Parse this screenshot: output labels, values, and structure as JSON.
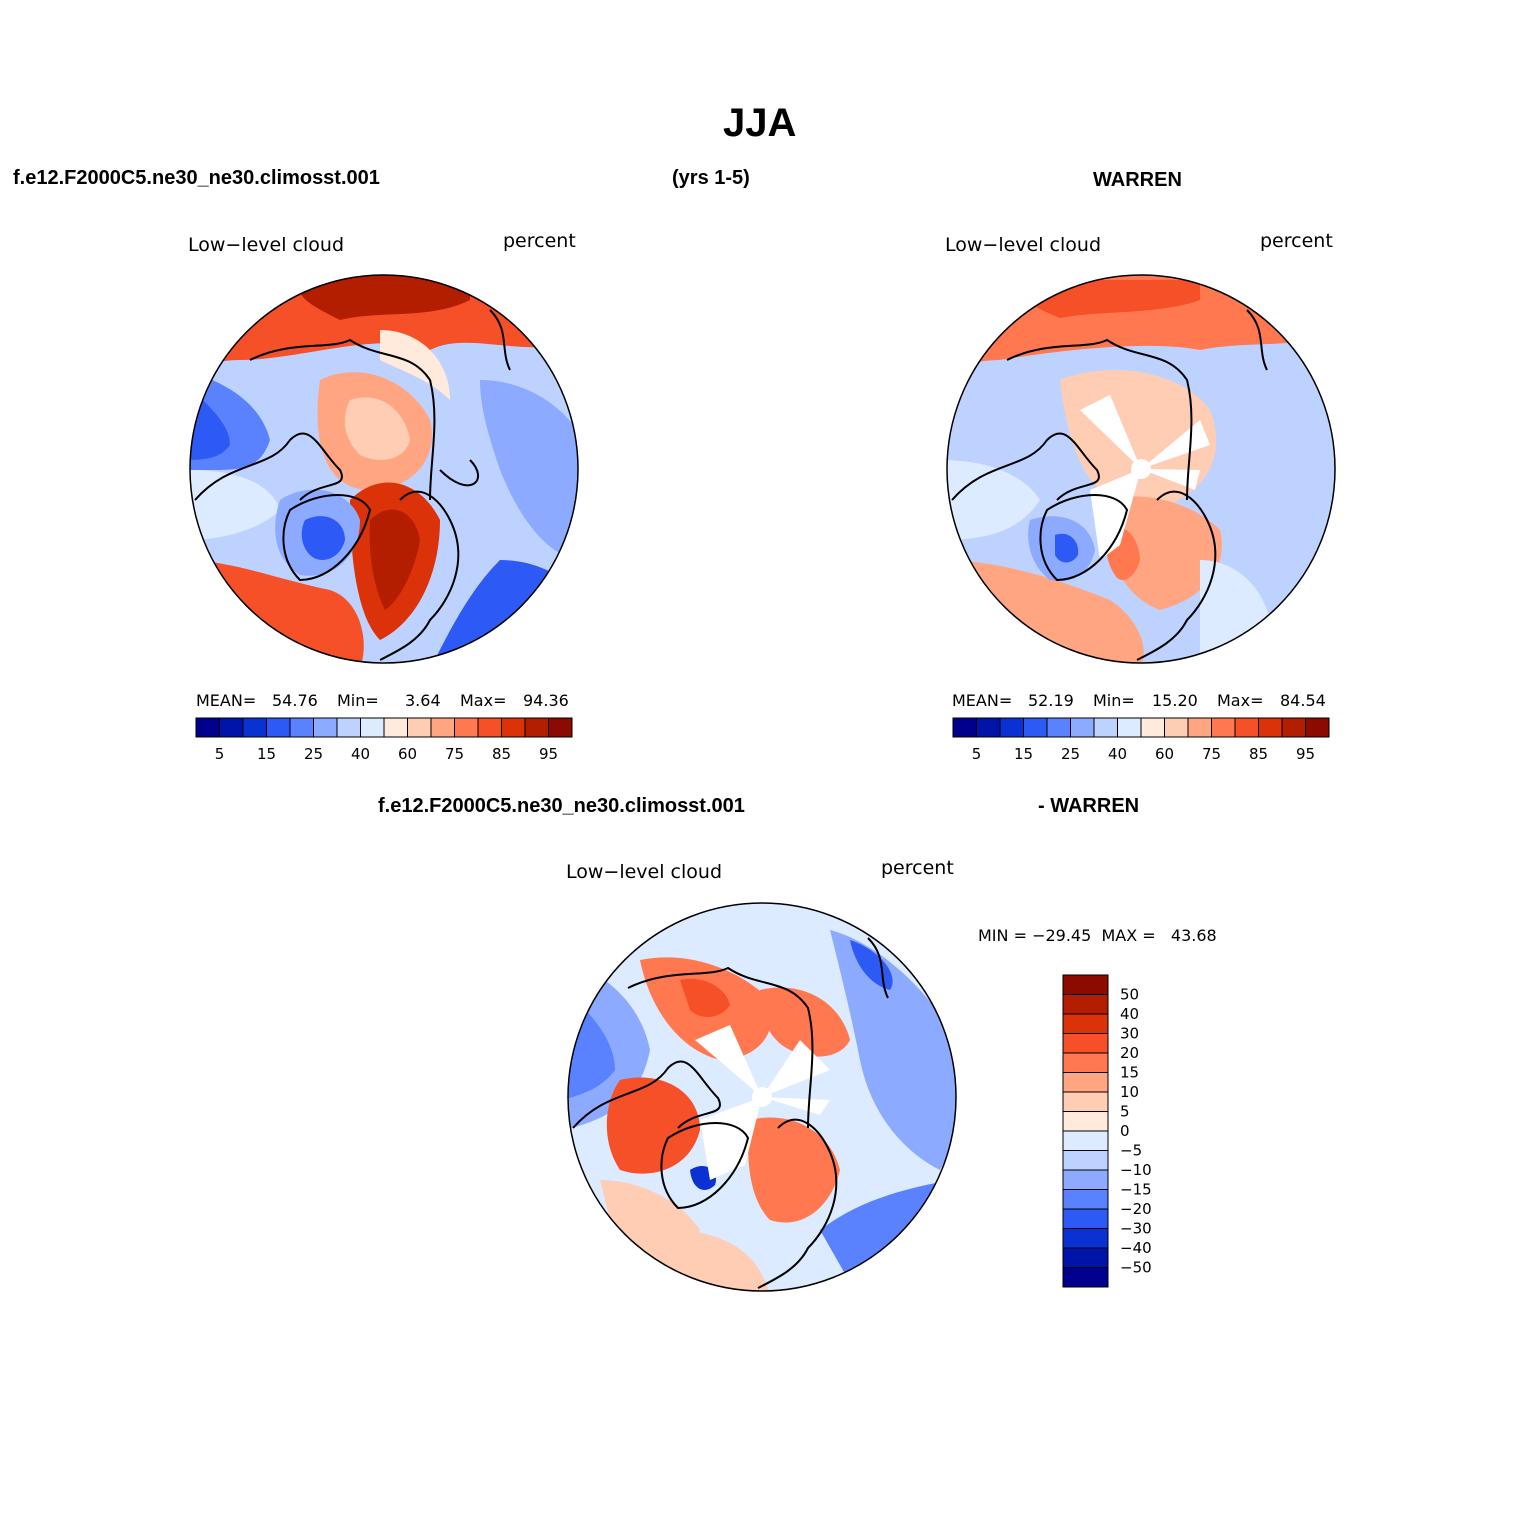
{
  "page": {
    "title": "JJA",
    "case_name": "f.e12.F2000C5.ne30_ne30.climosst.001",
    "years": "(yrs 1-5)",
    "obs_name": "WARREN",
    "diff_case": "f.e12.F2000C5.ne30_ne30.climosst.001",
    "diff_obs": "- WARREN"
  },
  "panels": [
    {
      "id": "model",
      "variable": "Low−level cloud",
      "units": "percent",
      "stats": {
        "mean_label": "MEAN=",
        "mean": "54.76",
        "min_label": "Min=",
        "min": "3.64",
        "max_label": "Max=",
        "max": "94.36"
      }
    },
    {
      "id": "obs",
      "variable": "Low−level cloud",
      "units": "percent",
      "stats": {
        "mean_label": "MEAN=",
        "mean": "52.19",
        "min_label": "Min=",
        "min": "15.20",
        "max_label": "Max=",
        "max": "84.54"
      }
    },
    {
      "id": "diff",
      "variable": "Low−level cloud",
      "units": "percent",
      "stats": {
        "minmax_text": "MIN = −29.45  MAX =   43.68"
      }
    }
  ],
  "colorbar_h": {
    "colors": [
      "#00008c",
      "#0014aa",
      "#0a32d2",
      "#2d5af5",
      "#5a82ff",
      "#8caaff",
      "#bed2ff",
      "#dcebff",
      "#ffeadc",
      "#ffcdb4",
      "#ffa582",
      "#ff7850",
      "#f55028",
      "#dc320a",
      "#b41e00",
      "#8c0a00"
    ],
    "labels": [
      "5",
      "15",
      "25",
      "40",
      "60",
      "75",
      "85",
      "95"
    ]
  },
  "colorbar_v": {
    "colors": [
      "#8c0a00",
      "#b41e00",
      "#dc320a",
      "#f55028",
      "#ff7850",
      "#ffa582",
      "#ffcdb4",
      "#ffeadc",
      "#dcebff",
      "#bed2ff",
      "#8caaff",
      "#5a82ff",
      "#2d5af5",
      "#0a32d2",
      "#0014aa",
      "#00008c"
    ],
    "labels": [
      "50",
      "40",
      "30",
      "20",
      "15",
      "10",
      "5",
      "0",
      "−5",
      "−10",
      "−15",
      "−20",
      "−30",
      "−40",
      "−50"
    ]
  },
  "legend_colors": {
    "land_outline": "#000000"
  }
}
